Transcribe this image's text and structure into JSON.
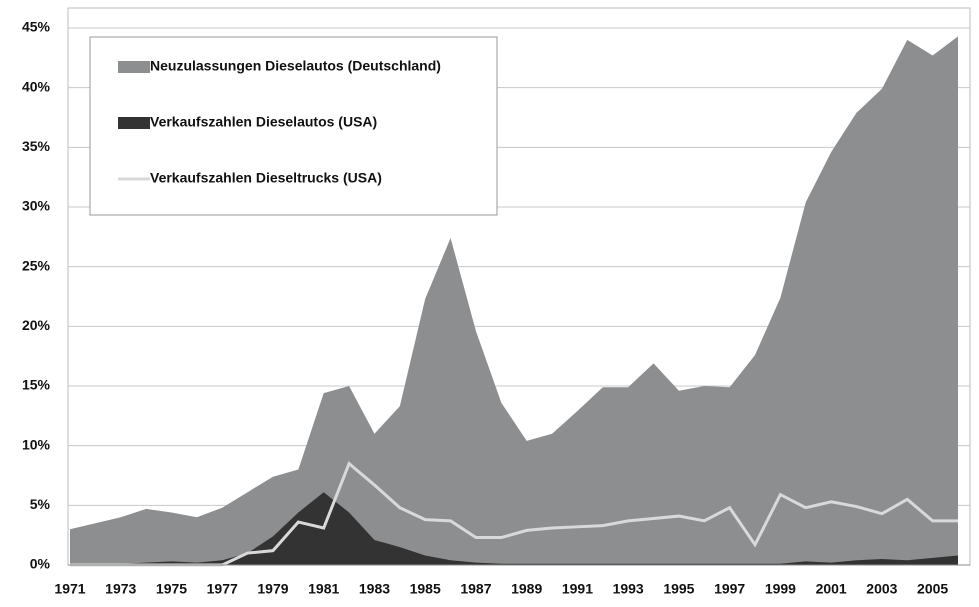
{
  "chart_data": {
    "type": "area",
    "categories": [
      "1971",
      null,
      "1973",
      null,
      "1975",
      null,
      "1977",
      null,
      "1979",
      null,
      "1981",
      null,
      "1983",
      null,
      "1985",
      null,
      "1987",
      null,
      "1989",
      null,
      "1991",
      null,
      "1993",
      null,
      "1995",
      null,
      "1997",
      null,
      "1999",
      null,
      "2001",
      null,
      "2003",
      null,
      "2005",
      null
    ],
    "series": [
      {
        "name": "Neuzulassungen Dieselautos (Deutschland)",
        "type": "area",
        "color": "#8c8e90",
        "values": [
          3.0,
          3.5,
          4.0,
          4.7,
          4.4,
          4.0,
          4.8,
          6.1,
          7.4,
          8.0,
          14.4,
          15.0,
          11.0,
          13.3,
          22.3,
          27.4,
          19.6,
          13.6,
          10.4,
          11.0,
          12.9,
          14.9,
          14.9,
          16.9,
          14.6,
          15.0,
          14.9,
          17.6,
          22.4,
          30.4,
          34.6,
          37.9,
          39.9,
          44.0,
          42.7,
          44.3
        ]
      },
      {
        "name": "Verkaufszahlen Dieselautos (USA)",
        "type": "area",
        "color": "#333333",
        "values": [
          0.1,
          0.1,
          0.1,
          0.2,
          0.3,
          0.2,
          0.4,
          1.0,
          2.4,
          4.4,
          6.1,
          4.4,
          2.1,
          1.5,
          0.8,
          0.4,
          0.2,
          0.1,
          0.1,
          0.1,
          0.1,
          0.1,
          0.1,
          0.1,
          0.1,
          0.1,
          0.1,
          0.1,
          0.1,
          0.3,
          0.2,
          0.4,
          0.5,
          0.4,
          0.6,
          0.8
        ]
      },
      {
        "name": "Verkaufszahlen Dieseltrucks (USA)",
        "type": "line",
        "color": "#d9d9d9",
        "values": [
          0,
          0,
          0,
          0,
          0,
          0,
          0,
          1.0,
          1.2,
          3.6,
          3.1,
          8.5,
          6.7,
          4.8,
          3.8,
          3.7,
          2.3,
          2.3,
          2.9,
          3.1,
          3.2,
          3.3,
          3.7,
          3.9,
          4.1,
          3.7,
          4.8,
          1.7,
          5.9,
          4.8,
          5.3,
          4.9,
          4.3,
          5.5,
          3.7,
          3.7
        ]
      }
    ],
    "ylim": [
      0,
      45
    ],
    "yticks": [
      {
        "value": 0,
        "label": "0%"
      },
      {
        "value": 5,
        "label": "5%"
      },
      {
        "value": 10,
        "label": "10%"
      },
      {
        "value": 15,
        "label": "15%"
      },
      {
        "value": 20,
        "label": "20%"
      },
      {
        "value": 25,
        "label": "25%"
      },
      {
        "value": 30,
        "label": "30%"
      },
      {
        "value": 35,
        "label": "35%"
      },
      {
        "value": 40,
        "label": "40%"
      },
      {
        "value": 45,
        "label": "45%"
      }
    ],
    "grid": true,
    "legend": "top-left"
  }
}
